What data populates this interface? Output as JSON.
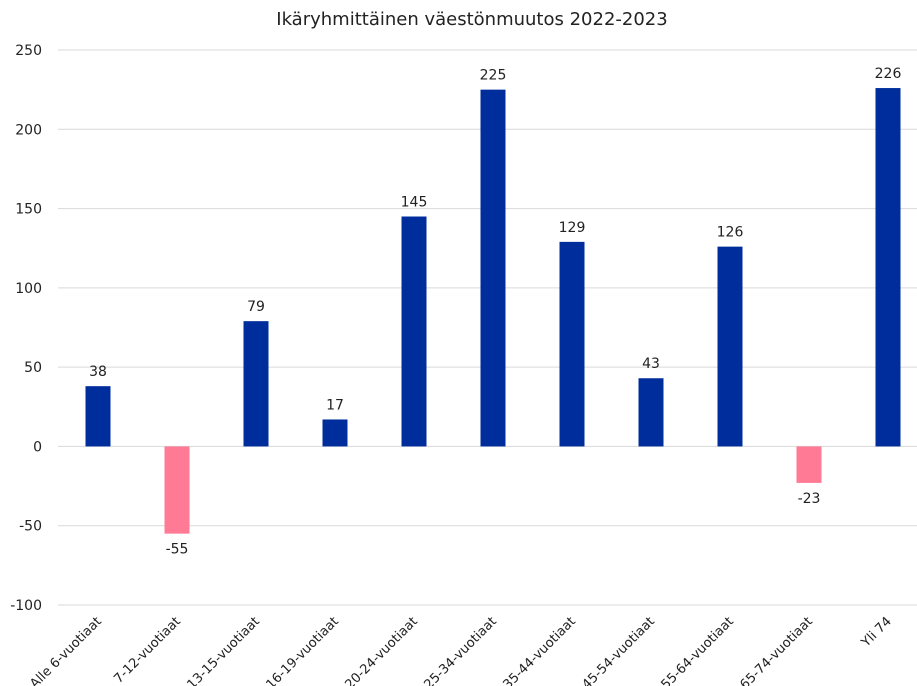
{
  "chart_data": {
    "type": "bar",
    "title": "Ikäryhmittäinen väestönmuutos 2022-2023",
    "xlabel": "",
    "ylabel": "",
    "ylim": [
      -100,
      250
    ],
    "yticks": [
      250,
      200,
      150,
      100,
      50,
      0,
      -50,
      -100
    ],
    "grid": true,
    "legend": "none",
    "categories": [
      "Alle 6-vuotiaat",
      "7-12-vuotiaat",
      "13-15-vuotiaat",
      "16-19-vuotiaat",
      "20-24-vuotiaat",
      "25-34-vuotiaat",
      "35-44-vuotiaat",
      "45-54-vuotiaat",
      "55-64-vuotiaat",
      "65-74-vuotiaat",
      "Yli 74"
    ],
    "values": [
      38,
      -55,
      79,
      17,
      145,
      225,
      129,
      43,
      126,
      -23,
      226
    ],
    "colors": {
      "positive": "#002d9c",
      "negative": "#ff7a95"
    }
  }
}
